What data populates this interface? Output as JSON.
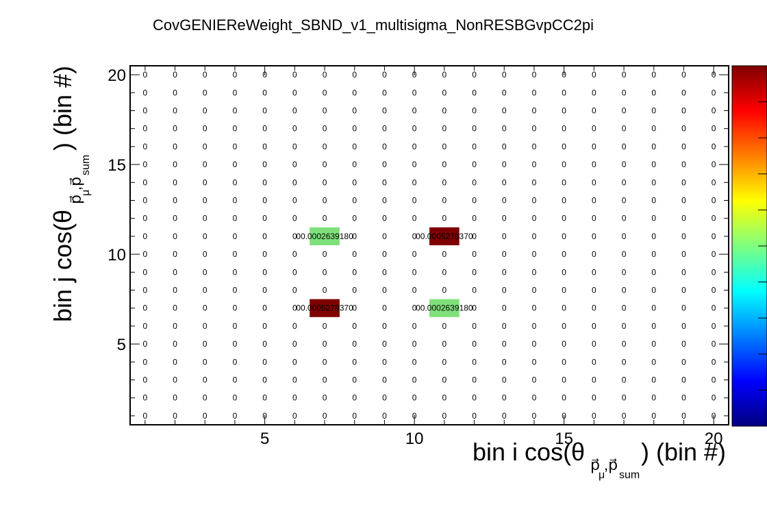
{
  "chart_data": {
    "type": "heatmap",
    "title": "CovGENIEReWeight_SBND_v1_multisigma_NonRESBGvpCC2pi",
    "xlabel": "bin i cos(θ",
    "xlabel_sub": "p⃗",
    "xlabel_subsub": "μ",
    "xlabel_sub2": ",p⃗",
    "xlabel_subsub2": "sum",
    "xlabel_tail": ") (bin #)",
    "ylabel": "bin j cos(θ",
    "ylabel_tail": ") (bin #)",
    "xlim": [
      0.5,
      20.5
    ],
    "ylim": [
      0.5,
      20.5
    ],
    "x_ticks": [
      5,
      10,
      15,
      20
    ],
    "y_ticks": [
      5,
      10,
      15,
      20
    ],
    "nbins_x": 20,
    "nbins_y": 20,
    "default_cell_text": "0",
    "cells": [
      {
        "x": 7,
        "y": 11,
        "value": 0.000263918,
        "label": "00.0002639180",
        "color": "#7fe07a"
      },
      {
        "x": 11,
        "y": 11,
        "value": 0.000527837,
        "label": "00.0005278370",
        "color": "#7f0000"
      },
      {
        "x": 7,
        "y": 7,
        "value": 0.000527837,
        "label": "00.0005278370",
        "color": "#7f0000"
      },
      {
        "x": 11,
        "y": 7,
        "value": 0.000263918,
        "label": "00.0002639180",
        "color": "#7fe07a"
      }
    ],
    "colorbar": {
      "colors": [
        "#00007f",
        "#0000ff",
        "#007fff",
        "#00ffff",
        "#7fff7f",
        "#ffff00",
        "#ff7f00",
        "#ff0000",
        "#7f0000"
      ]
    },
    "grid": false,
    "legend": "none"
  }
}
